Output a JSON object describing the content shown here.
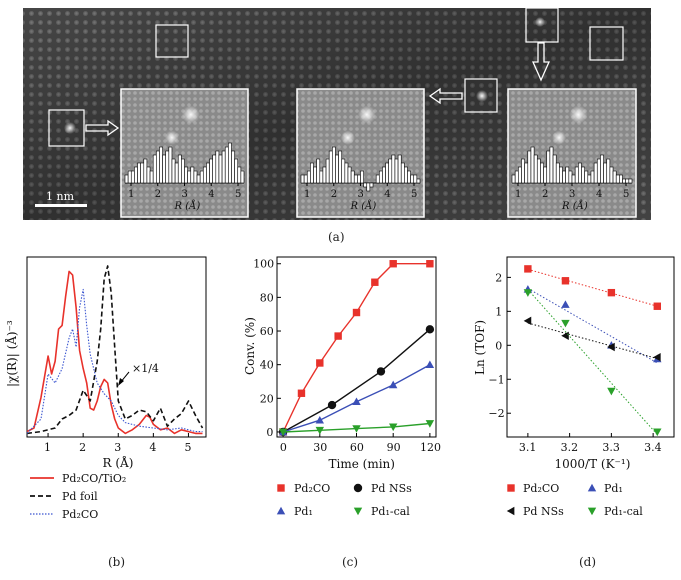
{
  "panel_labels": {
    "a": "(a)",
    "b": "(b)",
    "c": "(c)",
    "d": "(d)"
  },
  "colors": {
    "red": "#e8322b",
    "black": "#111111",
    "blue": "#3b4fb6",
    "green": "#2aa02a",
    "blue_dotted": "#3a55d0"
  },
  "micrograph": {
    "scale_bar": "1 nm",
    "insets": [
      {
        "ticks": [
          "1",
          "2",
          "3",
          "4",
          "5"
        ],
        "xlabel": "R (Å)",
        "bars": [
          2,
          3,
          3,
          4,
          5,
          5,
          6,
          4,
          3,
          7,
          8,
          9,
          7,
          8,
          9,
          6,
          5,
          7,
          6,
          4,
          3,
          4,
          3,
          2,
          3,
          4,
          5,
          6,
          7,
          8,
          7,
          8,
          9,
          10,
          8,
          6,
          4,
          3
        ]
      },
      {
        "ticks": [
          "1",
          "2",
          "3",
          "4",
          "5"
        ],
        "xlabel": "R (Å)",
        "bars": [
          2,
          2,
          3,
          5,
          4,
          6,
          3,
          4,
          6,
          8,
          9,
          7,
          8,
          6,
          5,
          4,
          3,
          2,
          2,
          3,
          -1,
          -2,
          -1,
          0,
          2,
          3,
          4,
          5,
          6,
          7,
          6,
          7,
          5,
          4,
          3,
          2,
          2,
          1
        ]
      },
      {
        "ticks": [
          "1",
          "2",
          "3",
          "4",
          "5"
        ],
        "xlabel": "R (Å)",
        "bars": [
          2,
          3,
          4,
          6,
          5,
          8,
          9,
          7,
          6,
          5,
          4,
          8,
          9,
          7,
          5,
          4,
          3,
          4,
          3,
          2,
          4,
          5,
          4,
          3,
          2,
          3,
          5,
          6,
          7,
          5,
          6,
          4,
          3,
          2,
          2,
          1,
          1,
          1
        ]
      }
    ]
  },
  "chart_data": [
    {
      "id": "b",
      "type": "line",
      "xlabel": "R (Å)",
      "ylabel": "|χ(R)| (Å)⁻³",
      "xlim": [
        0.4,
        5.5
      ],
      "xticks": [
        "1",
        "2",
        "3",
        "4",
        "5"
      ],
      "annotation": "×1/4",
      "series": [
        {
          "name": "Pd₂CO/TiO₂",
          "style": "solid",
          "x": [
            0.4,
            0.6,
            0.8,
            1.0,
            1.1,
            1.2,
            1.3,
            1.4,
            1.5,
            1.6,
            1.7,
            1.8,
            1.9,
            2.0,
            2.1,
            2.2,
            2.3,
            2.4,
            2.5,
            2.6,
            2.7,
            2.8,
            2.9,
            3.0,
            3.2,
            3.4,
            3.6,
            3.8,
            3.9,
            4.0,
            4.2,
            4.4,
            4.6,
            4.8,
            5.0,
            5.2,
            5.4
          ],
          "y": [
            0.03,
            0.05,
            0.22,
            0.45,
            0.35,
            0.42,
            0.6,
            0.62,
            0.78,
            0.92,
            0.9,
            0.72,
            0.48,
            0.38,
            0.3,
            0.16,
            0.15,
            0.2,
            0.28,
            0.32,
            0.3,
            0.18,
            0.1,
            0.05,
            0.02,
            0.04,
            0.07,
            0.12,
            0.11,
            0.07,
            0.04,
            0.05,
            0.02,
            0.04,
            0.03,
            0.02,
            0.02
          ]
        },
        {
          "name": "Pd foil",
          "style": "dashed",
          "x": [
            0.4,
            0.8,
            1.2,
            1.4,
            1.6,
            1.8,
            2.0,
            2.2,
            2.4,
            2.5,
            2.6,
            2.7,
            2.8,
            2.9,
            3.0,
            3.2,
            3.4,
            3.6,
            3.8,
            4.0,
            4.2,
            4.4,
            4.6,
            4.8,
            5.0,
            5.2,
            5.4
          ],
          "y": [
            0.02,
            0.03,
            0.05,
            0.1,
            0.12,
            0.15,
            0.26,
            0.2,
            0.42,
            0.6,
            0.88,
            0.95,
            0.8,
            0.5,
            0.2,
            0.1,
            0.12,
            0.15,
            0.14,
            0.09,
            0.16,
            0.06,
            0.1,
            0.13,
            0.2,
            0.12,
            0.05
          ]
        },
        {
          "name": "Pd₂CO",
          "style": "dotted",
          "x": [
            0.4,
            0.8,
            1.0,
            1.2,
            1.4,
            1.6,
            1.7,
            1.8,
            1.9,
            2.0,
            2.1,
            2.2,
            2.3,
            2.4,
            2.6,
            2.8,
            3.0,
            3.2,
            3.6,
            4.0,
            4.4,
            4.8,
            5.2,
            5.4
          ],
          "y": [
            0.02,
            0.1,
            0.35,
            0.3,
            0.38,
            0.55,
            0.6,
            0.5,
            0.72,
            0.82,
            0.62,
            0.46,
            0.38,
            0.3,
            0.24,
            0.2,
            0.12,
            0.08,
            0.06,
            0.05,
            0.04,
            0.05,
            0.03,
            0.03
          ]
        }
      ]
    },
    {
      "id": "c",
      "type": "line",
      "xlabel": "Time (min)",
      "ylabel": "Conv. (%)",
      "xlim": [
        -5,
        125
      ],
      "ylim": [
        -3,
        104
      ],
      "xticks": [
        0,
        30,
        60,
        90,
        120
      ],
      "yticks": [
        0,
        20,
        40,
        60,
        80,
        100
      ],
      "series": [
        {
          "name": "Pd₂CO",
          "marker": "square",
          "x": [
            0,
            15,
            30,
            45,
            60,
            75,
            90,
            120
          ],
          "y": [
            0,
            23,
            41,
            57,
            71,
            89,
            100,
            100
          ]
        },
        {
          "name": "Pd NSs",
          "marker": "circle",
          "x": [
            0,
            40,
            80,
            120
          ],
          "y": [
            0,
            16,
            36,
            61
          ]
        },
        {
          "name": "Pd₁",
          "marker": "triangle-up",
          "x": [
            0,
            30,
            60,
            90,
            120
          ],
          "y": [
            0,
            7,
            18,
            28,
            40
          ]
        },
        {
          "name": "Pd₁-cal",
          "marker": "triangle-down",
          "x": [
            0,
            30,
            60,
            90,
            120
          ],
          "y": [
            0,
            1,
            2,
            3,
            5
          ]
        }
      ]
    },
    {
      "id": "d",
      "type": "scatter",
      "xlabel": "1000/T (K⁻¹)",
      "ylabel": "Ln (TOF)",
      "xlim": [
        3.05,
        3.45
      ],
      "ylim": [
        -2.7,
        2.6
      ],
      "xticks": [
        3.1,
        3.2,
        3.3,
        3.4
      ],
      "yticks": [
        -2,
        -1,
        0,
        1,
        2
      ],
      "series": [
        {
          "name": "Pd₂CO",
          "marker": "square",
          "x": [
            3.1,
            3.19,
            3.3,
            3.41
          ],
          "y": [
            2.25,
            1.9,
            1.55,
            1.15
          ]
        },
        {
          "name": "Pd₁",
          "marker": "triangle-up",
          "x": [
            3.1,
            3.19,
            3.3,
            3.41
          ],
          "y": [
            1.65,
            1.2,
            0.0,
            -0.4
          ]
        },
        {
          "name": "Pd NSs",
          "marker": "triangle-left",
          "x": [
            3.1,
            3.19,
            3.3,
            3.41
          ],
          "y": [
            0.72,
            0.28,
            -0.05,
            -0.35
          ]
        },
        {
          "name": "Pd₁-cal",
          "marker": "triangle-down",
          "x": [
            3.1,
            3.19,
            3.3,
            3.41
          ],
          "y": [
            1.55,
            0.65,
            -1.35,
            -2.55
          ]
        }
      ]
    }
  ]
}
